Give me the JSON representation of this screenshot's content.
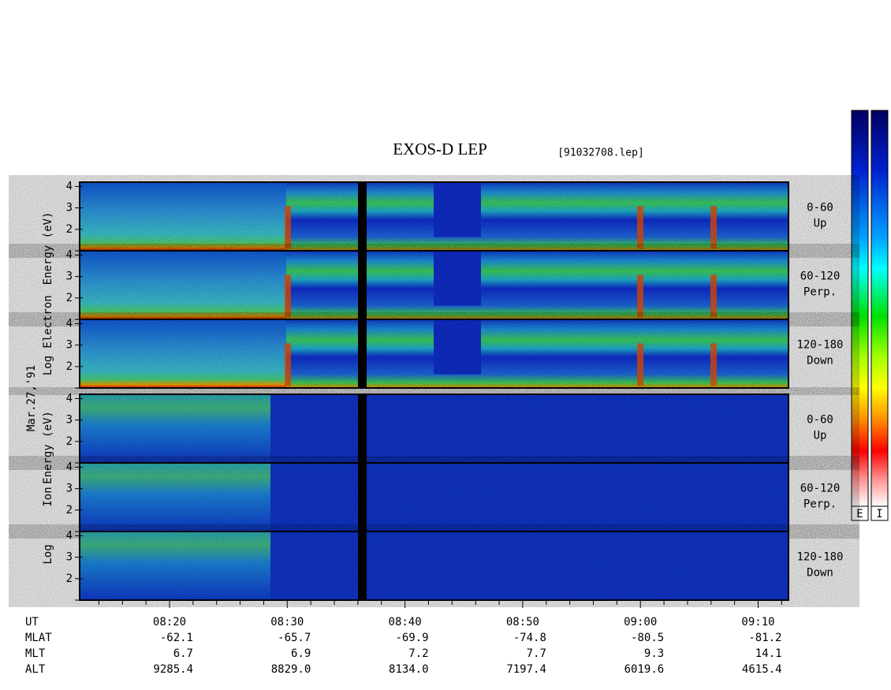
{
  "chart_data": {
    "type": "spectrogram",
    "title": "EXOS-D LEP",
    "file_label": "[91032708.lep]",
    "date_label": "Mar.27,'91",
    "groups": [
      {
        "ylabel": [
          "Log",
          "Electron",
          "Energy (eV)"
        ],
        "panels": [
          {
            "pitch": "0-60",
            "direction": "Up",
            "ylim": [
              1,
              4.2
            ],
            "yticks": [
              2,
              3,
              4
            ]
          },
          {
            "pitch": "60-120",
            "direction": "Perp.",
            "ylim": [
              1,
              4.2
            ],
            "yticks": [
              2,
              3,
              4
            ]
          },
          {
            "pitch": "120-180",
            "direction": "Down",
            "ylim": [
              1,
              4.2
            ],
            "yticks": [
              2,
              3,
              4
            ]
          }
        ]
      },
      {
        "ylabel": [
          "Log",
          "Ion",
          "Energy (eV)"
        ],
        "panels": [
          {
            "pitch": "0-60",
            "direction": "Up",
            "ylim": [
              1,
              4.2
            ],
            "yticks": [
              2,
              3,
              4
            ]
          },
          {
            "pitch": "60-120",
            "direction": "Perp.",
            "ylim": [
              1,
              4.2
            ],
            "yticks": [
              2,
              3,
              4
            ]
          },
          {
            "pitch": "120-180",
            "direction": "Down",
            "ylim": [
              1,
              4.2
            ],
            "yticks": [
              2,
              3,
              4
            ]
          }
        ]
      }
    ],
    "colorbar_labels": [
      "E",
      "I"
    ],
    "footer": {
      "rows": [
        {
          "name": "UT",
          "values": [
            "08:20",
            "08:30",
            "08:40",
            "08:50",
            "09:00",
            "09:10"
          ]
        },
        {
          "name": "MLAT",
          "values": [
            "-62.1",
            "-65.7",
            "-69.9",
            "-74.8",
            "-80.5",
            "-81.2"
          ]
        },
        {
          "name": "MLT",
          "values": [
            "6.7",
            "6.9",
            "7.2",
            "7.7",
            "9.3",
            "14.1"
          ]
        },
        {
          "name": "ALT",
          "values": [
            "9285.4",
            "8829.0",
            "8134.0",
            "7197.4",
            "6019.6",
            "4615.4"
          ]
        }
      ]
    }
  }
}
